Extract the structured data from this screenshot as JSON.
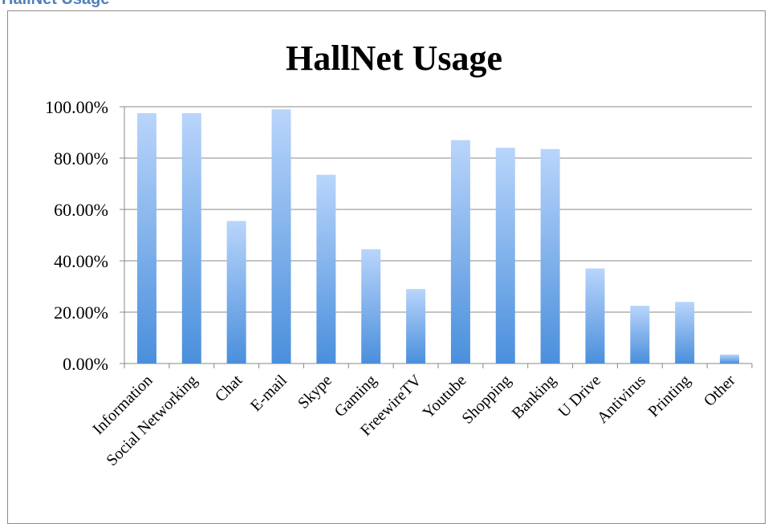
{
  "heading": "HallNet Usage",
  "colors": {
    "bar_top": "#b9d5fb",
    "bar_bottom": "#4a8fdc",
    "grid": "#888888",
    "frame": "#8c8c8c",
    "heading": "#4f81bd"
  },
  "chart_data": {
    "type": "bar",
    "title": "HallNet Usage",
    "xlabel": "",
    "ylabel": "",
    "ylim": [
      0,
      1
    ],
    "grid": true,
    "legend": "none",
    "yticks": [
      "0.00%",
      "20.00%",
      "40.00%",
      "60.00%",
      "80.00%",
      "100.00%"
    ],
    "categories": [
      "Information",
      "Social Networking",
      "Chat",
      "E-mail",
      "Skype",
      "Gaming",
      "FreewireTV",
      "Youtube",
      "Shopping",
      "Banking",
      "U Drive",
      "Antivirus",
      "Printing",
      "Other"
    ],
    "values": [
      0.975,
      0.975,
      0.555,
      0.99,
      0.735,
      0.445,
      0.29,
      0.87,
      0.84,
      0.835,
      0.37,
      0.225,
      0.24,
      0.035
    ]
  }
}
